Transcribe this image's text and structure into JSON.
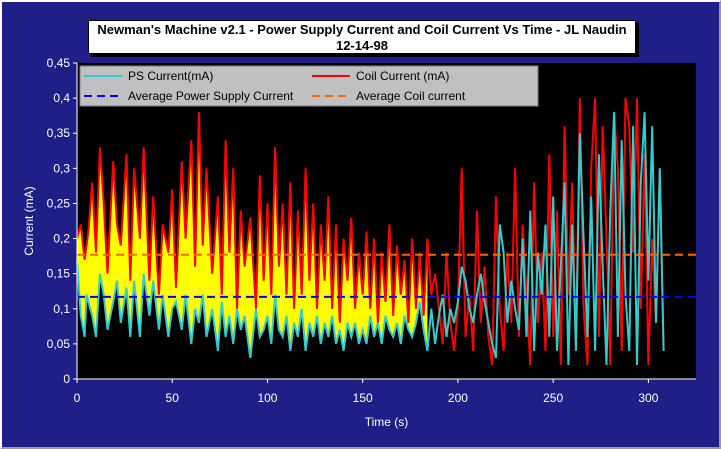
{
  "chart_data": {
    "type": "line",
    "title": "Newman's Machine v2.1 - Power Supply Current and Coil Current Vs Time - JL Naudin",
    "subtitle": "12-14-98",
    "xlabel": "Time (s)",
    "ylabel": "Current (mA)",
    "xlim": [
      0,
      325
    ],
    "ylim": [
      0,
      0.45
    ],
    "x_ticks": [
      "0",
      "50",
      "100",
      "150",
      "200",
      "250",
      "300"
    ],
    "y_ticks": [
      "0",
      "0,05",
      "0,1",
      "0,15",
      "0,2",
      "0,25",
      "0,3",
      "0,35",
      "0,4",
      "0,45"
    ],
    "grid": false,
    "legend_placement": "top-left",
    "colors": {
      "background": "#1f1f87",
      "plot_area": "#000000",
      "ps_current": "#33cccc",
      "coil_current": "#ff0000",
      "avg_ps": "#0000ff",
      "avg_coil": "#ff6600",
      "fill": "#ffff00"
    },
    "series": [
      {
        "name": "PS Current(mA)",
        "x": [
          0,
          2,
          4,
          5,
          8,
          10,
          12,
          14,
          16,
          19,
          21,
          23,
          26,
          28,
          30,
          33,
          35,
          38,
          40,
          43,
          45,
          48,
          50,
          52,
          55,
          57,
          60,
          62,
          64,
          66,
          68,
          71,
          74,
          76,
          78,
          80,
          82,
          84,
          86,
          88,
          91,
          94,
          96,
          98,
          100,
          102,
          104,
          106,
          108,
          110,
          112,
          114,
          116,
          118,
          120,
          122,
          124,
          126,
          128,
          130,
          132,
          134,
          136,
          138,
          140,
          142,
          144,
          146,
          148,
          150,
          152,
          154,
          156,
          158,
          160,
          162,
          164,
          166,
          168,
          170,
          172,
          174,
          176,
          178,
          180,
          182,
          184,
          186,
          188,
          190,
          192,
          194,
          196,
          198,
          200,
          202,
          204,
          206,
          208,
          210,
          212,
          214,
          216,
          218,
          220,
          222,
          224,
          226,
          228,
          230,
          232,
          234,
          236,
          238,
          240,
          242,
          244,
          246,
          248,
          250,
          252,
          254,
          256,
          258,
          260,
          262,
          264,
          266,
          268,
          270,
          272,
          274,
          276,
          278,
          280,
          282,
          284,
          286,
          288,
          290,
          292,
          294,
          296,
          298,
          300,
          302,
          304,
          306,
          308
        ],
        "values": [
          0.17,
          0.09,
          0.06,
          0.12,
          0.09,
          0.06,
          0.15,
          0.12,
          0.07,
          0.11,
          0.14,
          0.08,
          0.13,
          0.06,
          0.14,
          0.06,
          0.15,
          0.09,
          0.14,
          0.07,
          0.12,
          0.06,
          0.1,
          0.11,
          0.07,
          0.12,
          0.05,
          0.1,
          0.08,
          0.12,
          0.06,
          0.1,
          0.04,
          0.11,
          0.06,
          0.09,
          0.05,
          0.1,
          0.07,
          0.09,
          0.03,
          0.1,
          0.06,
          0.07,
          0.09,
          0.05,
          0.12,
          0.07,
          0.06,
          0.09,
          0.04,
          0.08,
          0.06,
          0.1,
          0.04,
          0.08,
          0.06,
          0.09,
          0.05,
          0.08,
          0.06,
          0.09,
          0.05,
          0.07,
          0.04,
          0.08,
          0.06,
          0.08,
          0.05,
          0.07,
          0.05,
          0.09,
          0.06,
          0.08,
          0.05,
          0.09,
          0.07,
          0.06,
          0.08,
          0.05,
          0.09,
          0.07,
          0.06,
          0.08,
          0.11,
          0.07,
          0.04,
          0.1,
          0.05,
          0.09,
          0.12,
          0.06,
          0.1,
          0.08,
          0.11,
          0.16,
          0.14,
          0.1,
          0.08,
          0.12,
          0.15,
          0.11,
          0.08,
          0.05,
          0.03,
          0.22,
          0.18,
          0.08,
          0.14,
          0.1,
          0.07,
          0.2,
          0.06,
          0.24,
          0.04,
          0.18,
          0.12,
          0.22,
          0.06,
          0.26,
          0.04,
          0.16,
          0.28,
          0.02,
          0.22,
          0.04,
          0.35,
          0.2,
          0.06,
          0.26,
          0.04,
          0.32,
          0.16,
          0.02,
          0.24,
          0.38,
          0.06,
          0.34,
          0.12,
          0.04,
          0.36,
          0.02,
          0.28,
          0.38,
          0.14,
          0.36,
          0.08,
          0.3,
          0.04
        ]
      },
      {
        "name": "Coil Current (mA)",
        "x": [
          0,
          2,
          4,
          6,
          8,
          10,
          12,
          14,
          16,
          19,
          21,
          23,
          26,
          28,
          30,
          33,
          35,
          38,
          40,
          43,
          45,
          48,
          50,
          52,
          55,
          57,
          60,
          62,
          64,
          66,
          68,
          71,
          74,
          76,
          78,
          80,
          82,
          84,
          86,
          88,
          91,
          94,
          96,
          98,
          100,
          102,
          104,
          106,
          108,
          110,
          112,
          114,
          116,
          118,
          120,
          122,
          124,
          126,
          128,
          130,
          132,
          134,
          136,
          138,
          140,
          142,
          144,
          146,
          148,
          150,
          152,
          154,
          156,
          158,
          160,
          162,
          164,
          166,
          168,
          170,
          172,
          174,
          176,
          178,
          180,
          182,
          184,
          186,
          188,
          190,
          192,
          194,
          196,
          198,
          200,
          202,
          204,
          206,
          208,
          210,
          212,
          214,
          216,
          218,
          220,
          222,
          224,
          226,
          228,
          230,
          232,
          234,
          236,
          238,
          240,
          242,
          244,
          246,
          248,
          250,
          252,
          254,
          256,
          258,
          260,
          262,
          264,
          266,
          268,
          270,
          272,
          274,
          276,
          278,
          280,
          282,
          284,
          286,
          288,
          290,
          292,
          294,
          296,
          298,
          300,
          302,
          304,
          306,
          308
        ],
        "values": [
          0.2,
          0.22,
          0.17,
          0.21,
          0.28,
          0.18,
          0.33,
          0.25,
          0.15,
          0.31,
          0.22,
          0.19,
          0.32,
          0.14,
          0.3,
          0.2,
          0.33,
          0.14,
          0.26,
          0.12,
          0.22,
          0.18,
          0.27,
          0.13,
          0.31,
          0.2,
          0.34,
          0.16,
          0.38,
          0.19,
          0.3,
          0.15,
          0.26,
          0.12,
          0.34,
          0.18,
          0.3,
          0.1,
          0.24,
          0.16,
          0.23,
          0.1,
          0.29,
          0.14,
          0.25,
          0.12,
          0.33,
          0.16,
          0.25,
          0.12,
          0.28,
          0.1,
          0.24,
          0.12,
          0.3,
          0.14,
          0.25,
          0.1,
          0.22,
          0.14,
          0.26,
          0.1,
          0.22,
          0.08,
          0.2,
          0.14,
          0.23,
          0.1,
          0.18,
          0.12,
          0.21,
          0.1,
          0.2,
          0.08,
          0.18,
          0.11,
          0.22,
          0.09,
          0.19,
          0.12,
          0.17,
          0.08,
          0.2,
          0.1,
          0.18,
          0.09,
          0.2,
          0.12,
          0.15,
          0.1,
          0.05,
          0.18,
          0.08,
          0.04,
          0.1,
          0.3,
          0.06,
          0.12,
          0.04,
          0.24,
          0.08,
          0.16,
          0.06,
          0.02,
          0.26,
          0.1,
          0.04,
          0.18,
          0.08,
          0.3,
          0.06,
          0.22,
          0.12,
          0.02,
          0.28,
          0.08,
          0.18,
          0.04,
          0.32,
          0.06,
          0.24,
          0.02,
          0.36,
          0.12,
          0.28,
          0.04,
          0.4,
          0.1,
          0.02,
          0.3,
          0.4,
          0.06,
          0.36,
          0.2,
          0.02,
          0.38,
          0.3,
          0.04,
          0.4,
          0.36,
          0.18,
          0.4,
          0.1,
          0.32,
          0.02,
          0.2,
          0.08,
          0.3,
          0.04
        ]
      },
      {
        "name": "Average Power Supply Current",
        "constant": 0.117
      },
      {
        "name": "Average Coil current",
        "constant": 0.177
      }
    ],
    "fill_between": {
      "x_range": [
        0,
        185
      ],
      "upper": "Coil Current (mA)",
      "lower": "PS Current(mA)"
    }
  }
}
